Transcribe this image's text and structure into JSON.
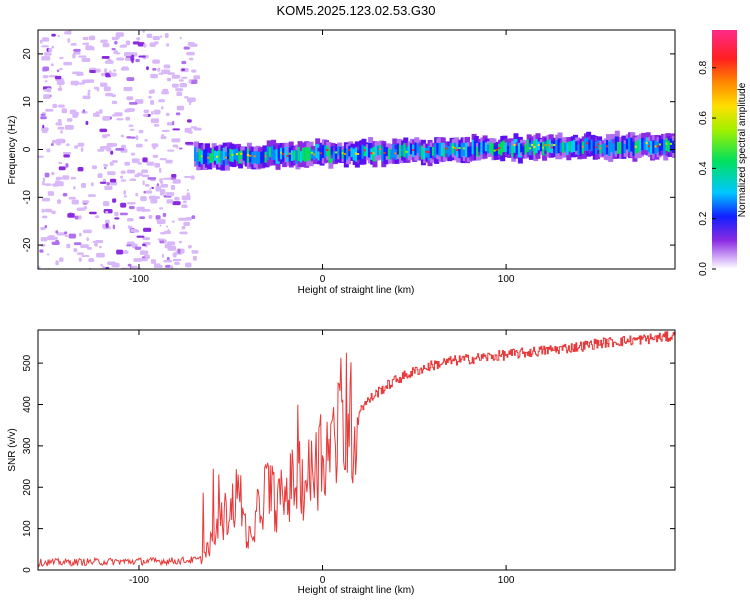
{
  "title": "KOM5.2025.123.02.53.G30",
  "chart_data": [
    {
      "type": "heatmap",
      "xlabel": "Height of straight line (km)",
      "ylabel": "Frequency (Hz)",
      "xlim": [
        -155,
        192
      ],
      "ylim": [
        -25,
        25
      ],
      "xticks": [
        -100,
        0,
        100
      ],
      "yticks": [
        -20,
        -10,
        0,
        10,
        20
      ],
      "colorbar": {
        "label": "Normalized spectral amplitude",
        "range": [
          0,
          0.95
        ],
        "ticks": [
          0.0,
          0.2,
          0.4,
          0.6,
          0.8
        ]
      },
      "features": {
        "noise_region_x": [
          -155,
          -70
        ],
        "signal_band_x": [
          -70,
          192
        ],
        "signal_center_freq_start": -1.5,
        "signal_center_freq_end": 1.0,
        "signal_band_halfwidth_hz": 2
      }
    },
    {
      "type": "line",
      "xlabel": "Height of straight line (km)",
      "ylabel": "SNR (v/v)",
      "xlim": [
        -155,
        192
      ],
      "ylim": [
        0,
        580
      ],
      "xticks": [
        -100,
        0,
        100
      ],
      "yticks": [
        0,
        100,
        200,
        300,
        400,
        500
      ],
      "color": "#e83a3a",
      "x": [
        -155,
        -120,
        -80,
        -66,
        -60,
        -55,
        -50,
        -45,
        -42,
        -38,
        -35,
        -30,
        -25,
        -20,
        -15,
        -10,
        -5,
        0,
        5,
        10,
        15,
        18,
        20,
        30,
        40,
        50,
        60,
        70,
        80,
        90,
        100,
        110,
        120,
        130,
        140,
        150,
        160,
        170,
        180,
        192
      ],
      "y": [
        18,
        20,
        22,
        25,
        70,
        120,
        150,
        190,
        100,
        60,
        150,
        200,
        160,
        180,
        220,
        210,
        240,
        280,
        300,
        330,
        350,
        370,
        390,
        430,
        460,
        480,
        495,
        505,
        510,
        515,
        520,
        525,
        530,
        535,
        540,
        548,
        552,
        556,
        560,
        565
      ]
    }
  ]
}
